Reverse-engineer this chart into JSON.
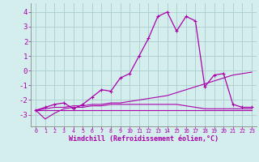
{
  "background_color": "#d4eeee",
  "grid_color": "#aacccc",
  "line_color": "#aa00aa",
  "xlabel": "Windchill (Refroidissement éolien,°C)",
  "xlabel_fontsize": 6,
  "ytick_fontsize": 6.5,
  "xtick_fontsize": 4.8,
  "xlim": [
    -0.5,
    23.5
  ],
  "ylim": [
    -3.8,
    4.6
  ],
  "yticks": [
    -3,
    -2,
    -1,
    0,
    1,
    2,
    3,
    4
  ],
  "xticks": [
    0,
    1,
    2,
    3,
    4,
    5,
    6,
    7,
    8,
    9,
    10,
    11,
    12,
    13,
    14,
    15,
    16,
    17,
    18,
    19,
    20,
    21,
    22,
    23
  ],
  "series": [
    {
      "x": [
        0,
        1,
        2,
        3,
        4,
        5,
        6,
        7,
        8,
        9,
        10,
        11,
        12,
        13,
        14,
        15,
        16,
        17,
        18,
        19,
        20,
        21,
        22,
        23
      ],
      "y": [
        -2.7,
        -2.5,
        -2.3,
        -2.2,
        -2.6,
        -2.3,
        -1.8,
        -1.3,
        -1.4,
        -0.5,
        -0.2,
        1.0,
        2.2,
        3.7,
        4.0,
        2.7,
        3.7,
        3.4,
        -1.1,
        -0.3,
        -0.2,
        -2.3,
        -2.5,
        -2.5
      ],
      "marker": "+",
      "markersize": 3.5,
      "linewidth": 0.9,
      "color": "#aa00aa"
    },
    {
      "x": [
        0,
        1,
        2,
        3,
        4,
        5,
        6,
        7,
        8,
        9,
        10,
        11,
        12,
        13,
        14,
        15,
        16,
        17,
        18,
        19,
        20,
        21,
        22,
        23
      ],
      "y": [
        -2.7,
        -2.6,
        -2.5,
        -2.5,
        -2.4,
        -2.4,
        -2.3,
        -2.3,
        -2.2,
        -2.2,
        -2.1,
        -2.0,
        -1.9,
        -1.8,
        -1.7,
        -1.5,
        -1.3,
        -1.1,
        -0.9,
        -0.7,
        -0.5,
        -0.3,
        -0.2,
        -0.1
      ],
      "marker": null,
      "linewidth": 0.8,
      "color": "#aa00aa"
    },
    {
      "x": [
        0,
        1,
        2,
        3,
        4,
        5,
        6,
        7,
        8,
        9,
        10,
        11,
        12,
        13,
        14,
        15,
        16,
        17,
        18,
        19,
        20,
        21,
        22,
        23
      ],
      "y": [
        -2.7,
        -3.3,
        -2.9,
        -2.6,
        -2.5,
        -2.5,
        -2.4,
        -2.4,
        -2.3,
        -2.3,
        -2.3,
        -2.3,
        -2.3,
        -2.3,
        -2.3,
        -2.3,
        -2.4,
        -2.5,
        -2.6,
        -2.6,
        -2.6,
        -2.6,
        -2.6,
        -2.6
      ],
      "marker": null,
      "linewidth": 0.8,
      "color": "#aa00aa"
    },
    {
      "x": [
        0,
        1,
        2,
        3,
        4,
        5,
        6,
        7,
        8,
        9,
        10,
        11,
        12,
        13,
        14,
        15,
        16,
        17,
        18,
        19,
        20,
        21,
        22,
        23
      ],
      "y": [
        -2.7,
        -2.7,
        -2.7,
        -2.7,
        -2.7,
        -2.7,
        -2.7,
        -2.7,
        -2.7,
        -2.7,
        -2.7,
        -2.7,
        -2.7,
        -2.7,
        -2.7,
        -2.7,
        -2.7,
        -2.7,
        -2.7,
        -2.7,
        -2.7,
        -2.7,
        -2.7,
        -2.7
      ],
      "marker": null,
      "linewidth": 0.8,
      "color": "#aa00aa"
    }
  ]
}
